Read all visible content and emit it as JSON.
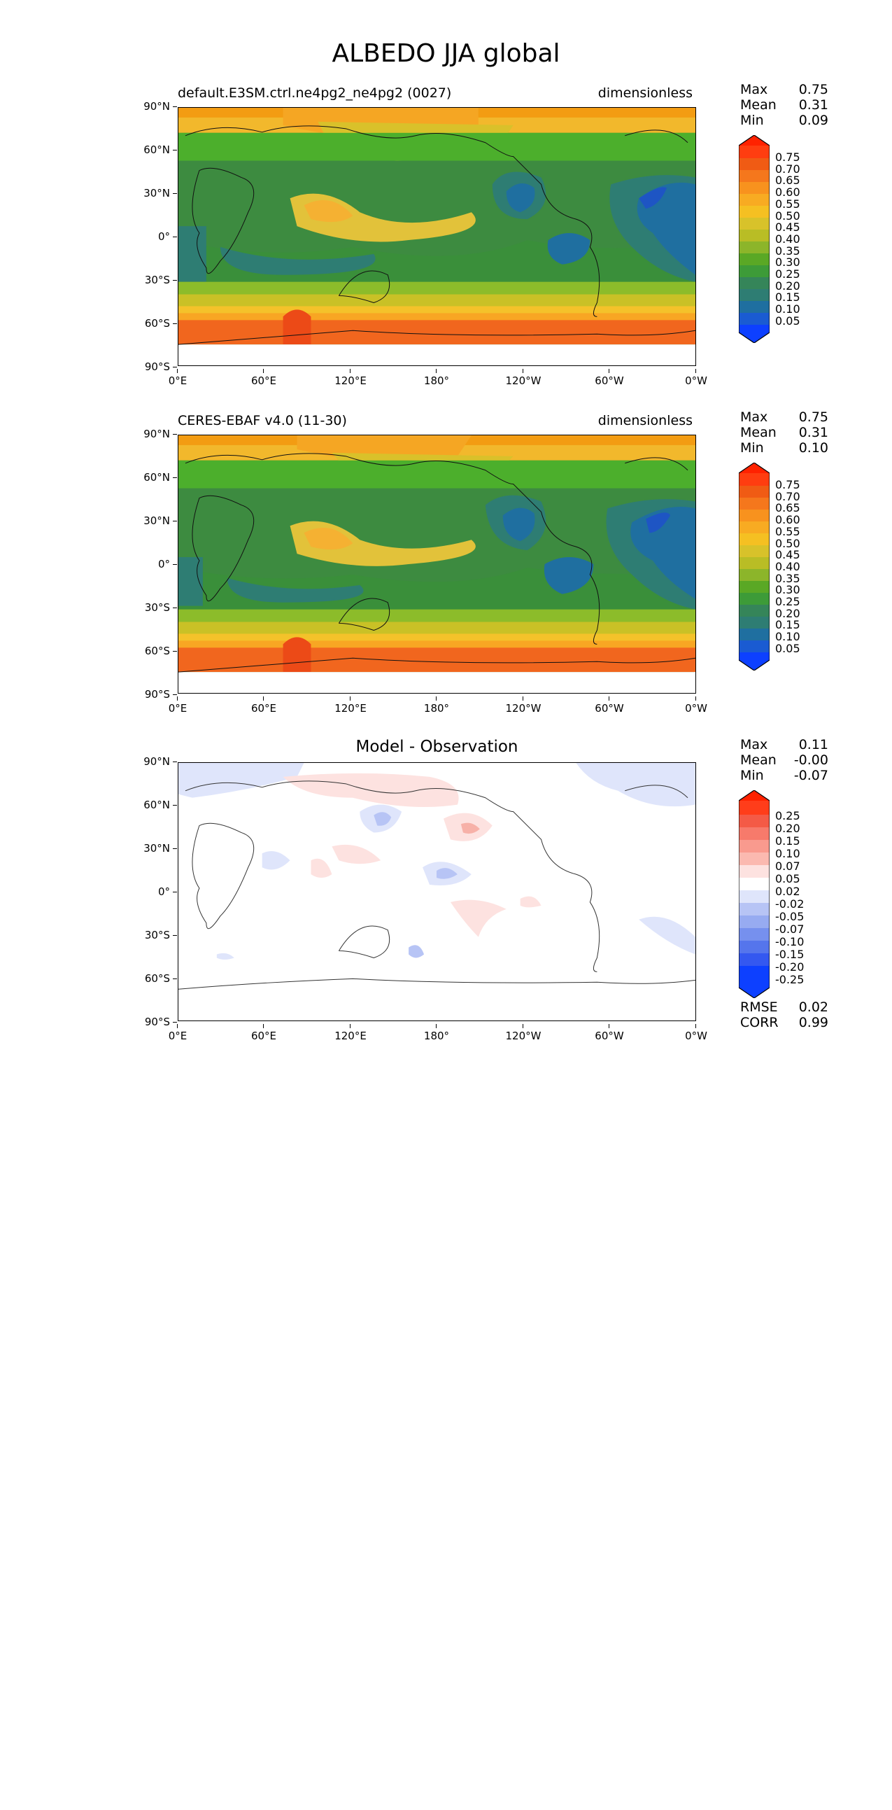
{
  "figure": {
    "title": "ALBEDO JJA global"
  },
  "axes": {
    "y_ticks": [
      "90°N",
      "60°N",
      "30°N",
      "0°",
      "30°S",
      "60°S",
      "90°S"
    ],
    "x_ticks": [
      "0°E",
      "60°E",
      "120°E",
      "180°",
      "120°W",
      "60°W",
      "0°W"
    ]
  },
  "panels": [
    {
      "title_left": "default.E3SM.ctrl.ne4pg2_ne4pg2 (0027)",
      "title_right": "dimensionless",
      "stats": [
        {
          "label": "Max",
          "value": "0.75"
        },
        {
          "label": "Mean",
          "value": "0.31"
        },
        {
          "label": "Min",
          "value": "0.09"
        }
      ],
      "colorbar_labels": [
        "0.75",
        "0.70",
        "0.65",
        "0.60",
        "0.55",
        "0.50",
        "0.45",
        "0.40",
        "0.35",
        "0.30",
        "0.25",
        "0.20",
        "0.15",
        "0.10",
        "0.05"
      ]
    },
    {
      "title_left": "CERES-EBAF v4.0 (11-30)",
      "title_right": "dimensionless",
      "stats": [
        {
          "label": "Max",
          "value": "0.75"
        },
        {
          "label": "Mean",
          "value": "0.31"
        },
        {
          "label": "Min",
          "value": "0.10"
        }
      ],
      "colorbar_labels": [
        "0.75",
        "0.70",
        "0.65",
        "0.60",
        "0.55",
        "0.50",
        "0.45",
        "0.40",
        "0.35",
        "0.30",
        "0.25",
        "0.20",
        "0.15",
        "0.10",
        "0.05"
      ]
    },
    {
      "title_center": "Model - Observation",
      "stats": [
        {
          "label": "Max",
          "value": "0.11"
        },
        {
          "label": "Mean",
          "value": "-0.00"
        },
        {
          "label": "Min",
          "value": "-0.07"
        }
      ],
      "colorbar_labels": [
        "0.25",
        "0.20",
        "0.15",
        "0.10",
        "0.07",
        "0.05",
        "0.02",
        "-0.02",
        "-0.05",
        "-0.07",
        "-0.10",
        "-0.15",
        "-0.20",
        "-0.25"
      ],
      "metrics": [
        {
          "label": "RMSE",
          "value": "0.02"
        },
        {
          "label": "CORR",
          "value": "0.99"
        }
      ]
    }
  ],
  "chart_data": [
    {
      "type": "heatmap",
      "title": "default.E3SM.ctrl.ne4pg2_ne4pg2 (0027)",
      "units": "dimensionless",
      "xlim": [
        0,
        360
      ],
      "ylim": [
        -90,
        90
      ],
      "levels": [
        0.05,
        0.1,
        0.15,
        0.2,
        0.25,
        0.3,
        0.35,
        0.4,
        0.45,
        0.5,
        0.55,
        0.6,
        0.65,
        0.7,
        0.75
      ],
      "max": 0.75,
      "mean": 0.31,
      "min": 0.09
    },
    {
      "type": "heatmap",
      "title": "CERES-EBAF v4.0 (11-30)",
      "units": "dimensionless",
      "xlim": [
        0,
        360
      ],
      "ylim": [
        -90,
        90
      ],
      "levels": [
        0.05,
        0.1,
        0.15,
        0.2,
        0.25,
        0.3,
        0.35,
        0.4,
        0.45,
        0.5,
        0.55,
        0.6,
        0.65,
        0.7,
        0.75
      ],
      "max": 0.75,
      "mean": 0.31,
      "min": 0.1
    },
    {
      "type": "heatmap",
      "title": "Model - Observation",
      "xlim": [
        0,
        360
      ],
      "ylim": [
        -90,
        90
      ],
      "levels": [
        -0.25,
        -0.2,
        -0.15,
        -0.1,
        -0.07,
        -0.05,
        -0.02,
        0.02,
        0.05,
        0.07,
        0.1,
        0.15,
        0.2,
        0.25
      ],
      "max": 0.11,
      "mean": -0.0,
      "min": -0.07,
      "rmse": 0.02,
      "corr": 0.99
    }
  ]
}
